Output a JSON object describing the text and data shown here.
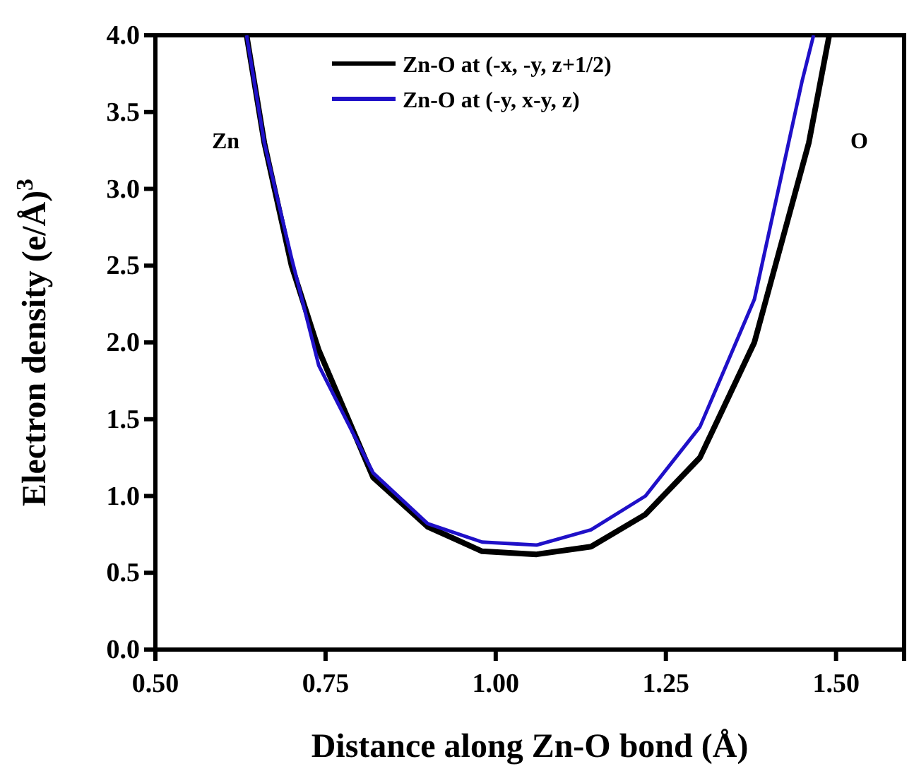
{
  "chart_data": {
    "type": "line",
    "xlabel": "Distance along Zn-O bond (Å)",
    "ylabel": "Electron density (e/Å)$^{3}$",
    "xlim": [
      0.5,
      1.6
    ],
    "xticks": [
      {
        "value": 0.5,
        "label": "0.50"
      },
      0.75,
      {
        "value": 1,
        "label": "1.00"
      },
      1.25,
      {
        "value": 1.5,
        "label": "1.50"
      }
    ],
    "ylim": [
      0,
      4
    ],
    "yticks": [
      {
        "value": 0,
        "label": "0.0"
      },
      0.5,
      {
        "value": 1,
        "label": "1.0"
      },
      1.5,
      {
        "value": 2,
        "label": "2.0"
      },
      2.5,
      {
        "value": 3,
        "label": "3.0"
      },
      3.5,
      {
        "value": 4,
        "label": "4.0"
      }
    ],
    "grid": false,
    "legend": "top",
    "marker": "none",
    "line_style": "solid",
    "series": [
      {
        "name": "Zn-O at (-x, -y, z+1/2)",
        "color": "#000000",
        "x": [
          0.634,
          0.66,
          0.7,
          0.74,
          0.82,
          0.9,
          0.98,
          1.06,
          1.14,
          1.22,
          1.3,
          1.38,
          1.46,
          1.49
        ],
        "values": [
          4.0,
          3.3,
          2.5,
          1.95,
          1.12,
          0.8,
          0.64,
          0.62,
          0.67,
          0.88,
          1.25,
          2.0,
          3.3,
          4.0
        ]
      },
      {
        "name": "Zn-O at (-y, x-y, z)",
        "color": "#1f10c8",
        "x": [
          0.634,
          0.66,
          0.7,
          0.74,
          0.82,
          0.9,
          0.98,
          1.06,
          1.14,
          1.22,
          1.3,
          1.38,
          1.45,
          1.467
        ],
        "values": [
          4.0,
          3.3,
          2.55,
          1.85,
          1.15,
          0.82,
          0.7,
          0.68,
          0.78,
          1.0,
          1.45,
          2.28,
          3.7,
          4.0
        ]
      }
    ],
    "annotations": [
      "Zn",
      "O"
    ]
  }
}
